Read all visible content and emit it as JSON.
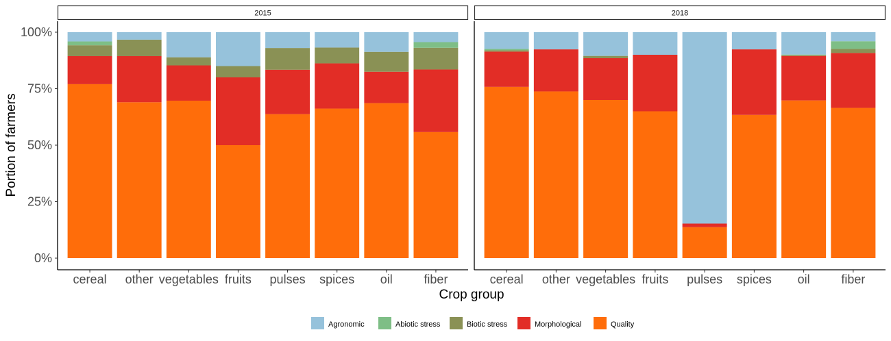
{
  "chart_data": {
    "type": "bar",
    "stacked": true,
    "ylabel": "Portion of farmers",
    "xlabel": "Crop group",
    "ylim": [
      0,
      100
    ],
    "yticks": [
      0,
      25,
      50,
      75,
      100
    ],
    "ytick_labels": [
      "0%",
      "25%",
      "50%",
      "75%",
      "100%"
    ],
    "legend_position": "bottom",
    "categories": [
      "cereal",
      "other",
      "vegetables",
      "fruits",
      "pulses",
      "spices",
      "oil",
      "fiber"
    ],
    "series_order": [
      "Quality",
      "Morphological",
      "Biotic stress",
      "Abiotic stress",
      "Agronomic"
    ],
    "legend": [
      {
        "name": "Agronomic",
        "color": "#96C2DB"
      },
      {
        "name": "Abiotic stress",
        "color": "#7EBE86"
      },
      {
        "name": "Biotic stress",
        "color": "#8A9155"
      },
      {
        "name": "Morphological",
        "color": "#E22D26"
      },
      {
        "name": "Quality",
        "color": "#FF6D0A"
      }
    ],
    "panels": [
      {
        "title": "2015",
        "series": [
          {
            "name": "Quality",
            "values": [
              77.0,
              69.0,
              69.7,
              50.0,
              63.7,
              66.2,
              68.6,
              55.8
            ]
          },
          {
            "name": "Morphological",
            "values": [
              12.4,
              20.4,
              15.6,
              30.0,
              19.7,
              20.0,
              13.9,
              27.7
            ]
          },
          {
            "name": "Biotic stress",
            "values": [
              4.8,
              7.3,
              3.6,
              5.0,
              9.6,
              7.0,
              8.8,
              9.6
            ]
          },
          {
            "name": "Abiotic stress",
            "values": [
              1.7,
              0,
              0,
              0,
              0,
              0,
              0,
              2.5
            ]
          },
          {
            "name": "Agronomic",
            "values": [
              4.1,
              3.3,
              11.1,
              15.0,
              7.0,
              6.8,
              8.7,
              4.4
            ]
          }
        ]
      },
      {
        "title": "2018",
        "series": [
          {
            "name": "Quality",
            "values": [
              75.8,
              73.8,
              70.0,
              65.0,
              13.7,
              63.4,
              69.8,
              66.5
            ]
          },
          {
            "name": "Morphological",
            "values": [
              15.6,
              18.6,
              18.5,
              25.0,
              1.6,
              29.0,
              19.7,
              24.3
            ]
          },
          {
            "name": "Biotic stress",
            "values": [
              0.6,
              0,
              1.0,
              0,
              0,
              0,
              0.3,
              1.8
            ]
          },
          {
            "name": "Abiotic stress",
            "values": [
              0.6,
              0,
              0,
              0,
              0,
              0,
              0.3,
              3.4
            ]
          },
          {
            "name": "Agronomic",
            "values": [
              7.4,
              7.6,
              10.5,
              10.0,
              84.7,
              7.6,
              9.9,
              4.0
            ]
          }
        ]
      }
    ]
  }
}
